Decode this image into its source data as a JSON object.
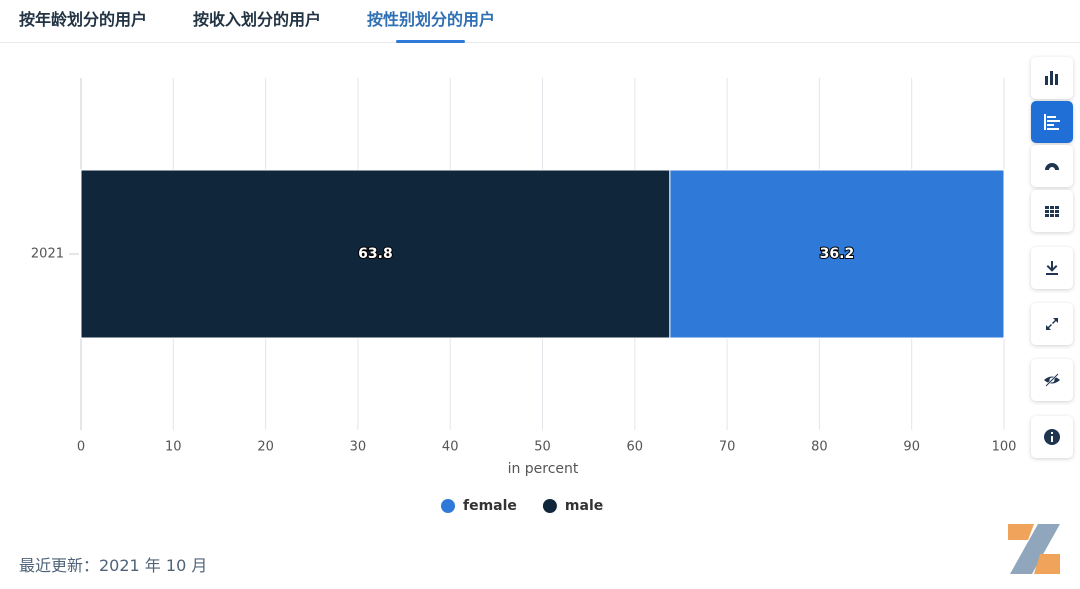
{
  "tabs": [
    "按年龄划分的用户",
    "按收入划分的用户",
    "按性别划分的用户"
  ],
  "chart_data": {
    "type": "stacked-bar-horizontal",
    "categories": [
      "2021"
    ],
    "series": [
      {
        "name": "female",
        "color": "#2f7ad9",
        "values": [
          36.2
        ]
      },
      {
        "name": "male",
        "color": "#10263b",
        "values": [
          63.8
        ]
      }
    ],
    "x_label": "in percent",
    "xlim": [
      0,
      100
    ],
    "xticks": [
      0,
      10,
      20,
      30,
      40,
      50,
      60,
      70,
      80,
      90,
      100
    ],
    "grid": true
  },
  "footer": "最近更新：2021 年 10 月"
}
